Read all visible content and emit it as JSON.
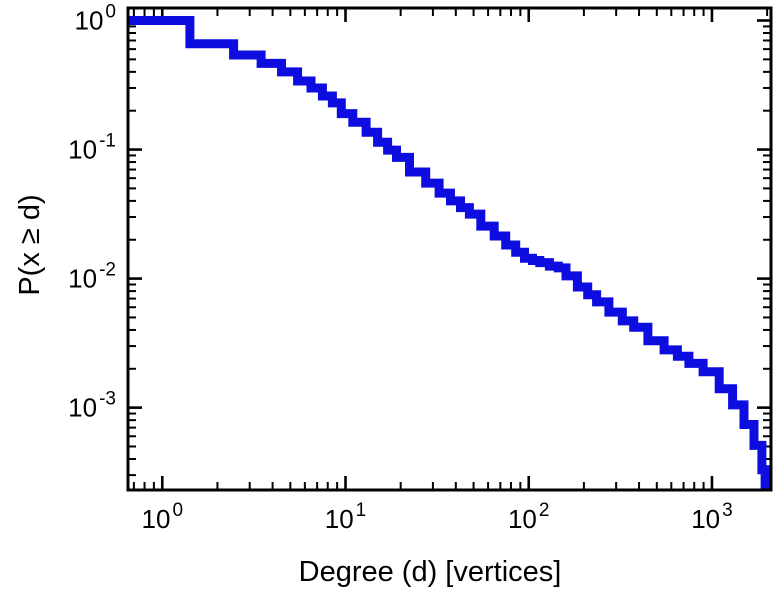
{
  "chart_data": {
    "type": "line",
    "style": "step-ccdf",
    "scale": "log-log",
    "title": "",
    "xlabel": "Degree (d) [vertices]",
    "ylabel": "P(x ≥ d)",
    "xlim": [
      0.65,
      2100
    ],
    "ylim": [
      0.00023,
      1.25
    ],
    "grid": false,
    "legend": false,
    "x_tick_labels": [
      "10^0",
      "10^1",
      "10^2",
      "10^3"
    ],
    "x_tick_exponents": [
      0,
      1,
      2,
      3
    ],
    "y_tick_labels": [
      "10^0",
      "10^-1",
      "10^-2",
      "10^-3"
    ],
    "y_tick_exponents": [
      0,
      -1,
      -2,
      -3
    ],
    "line_color": "#0d0de0",
    "line_width": 9,
    "axis_color": "#000000",
    "text_color": "#000000",
    "background": "#ffffff",
    "series": [
      {
        "name": "degree-ccdf",
        "x": [
          1,
          2,
          3,
          4,
          5,
          6,
          7,
          8,
          9,
          10,
          12,
          14,
          16,
          18,
          20,
          25,
          30,
          35,
          40,
          45,
          50,
          60,
          70,
          80,
          90,
          100,
          110,
          120,
          140,
          150,
          170,
          200,
          220,
          250,
          300,
          350,
          400,
          500,
          600,
          700,
          800,
          1000,
          1200,
          1400,
          1600,
          1800,
          1950
        ],
        "y": [
          1.0,
          0.66,
          0.54,
          0.465,
          0.4,
          0.34,
          0.3,
          0.26,
          0.23,
          0.19,
          0.163,
          0.136,
          0.114,
          0.099,
          0.087,
          0.067,
          0.055,
          0.046,
          0.04,
          0.0355,
          0.0316,
          0.0255,
          0.0214,
          0.0182,
          0.016,
          0.0144,
          0.0138,
          0.0133,
          0.0125,
          0.0121,
          0.0105,
          0.0086,
          0.0075,
          0.0066,
          0.0055,
          0.0047,
          0.0042,
          0.0033,
          0.0028,
          0.0025,
          0.0022,
          0.0019,
          0.0014,
          0.00105,
          0.00074,
          0.00051,
          0.00033
        ]
      }
    ]
  }
}
